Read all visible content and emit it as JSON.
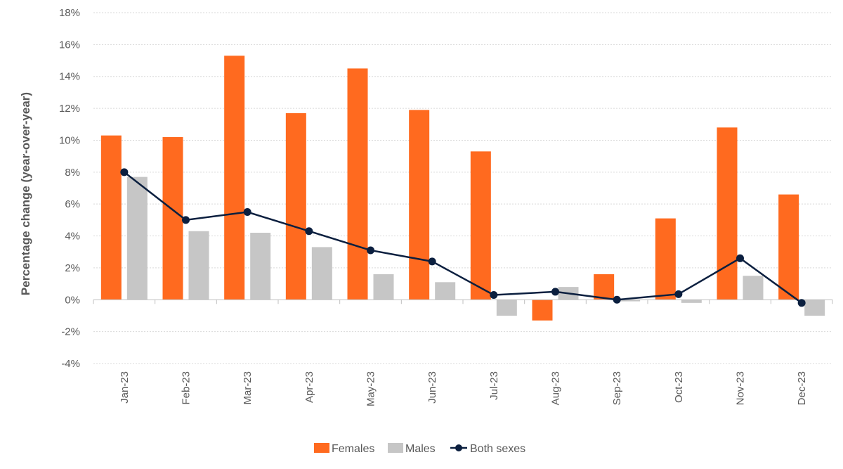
{
  "chart_data": {
    "type": "bar",
    "title": "",
    "xlabel": "",
    "ylabel": "Percentage change (year-over-year)",
    "ylim": [
      -4,
      18
    ],
    "ytick_step": 2,
    "ytick_labels": [
      "-4%",
      "-2%",
      "0%",
      "2%",
      "4%",
      "6%",
      "8%",
      "10%",
      "12%",
      "14%",
      "16%",
      "18%"
    ],
    "grid": true,
    "legend_position": "bottom-center",
    "categories": [
      "Jan-23",
      "Feb-23",
      "Mar-23",
      "Apr-23",
      "May-23",
      "Jun-23",
      "Jul-23",
      "Aug-23",
      "Sep-23",
      "Oct-23",
      "Nov-23",
      "Dec-23"
    ],
    "series": [
      {
        "name": "Females",
        "kind": "bar",
        "color": "#FF6A1F",
        "values": [
          10.3,
          10.2,
          15.3,
          11.7,
          14.5,
          11.9,
          9.3,
          -1.3,
          1.6,
          5.1,
          10.8,
          6.6
        ]
      },
      {
        "name": "Males",
        "kind": "bar",
        "color": "#C6C6C6",
        "values": [
          7.7,
          4.3,
          4.2,
          3.3,
          1.6,
          1.1,
          -1.0,
          0.8,
          -0.1,
          -0.2,
          1.5,
          -1.0
        ]
      },
      {
        "name": "Both sexes",
        "kind": "line",
        "color": "#0B1F3F",
        "values": [
          8.0,
          5.0,
          5.5,
          4.3,
          3.1,
          2.4,
          0.3,
          0.5,
          0.0,
          0.35,
          2.6,
          -0.2
        ]
      }
    ]
  }
}
